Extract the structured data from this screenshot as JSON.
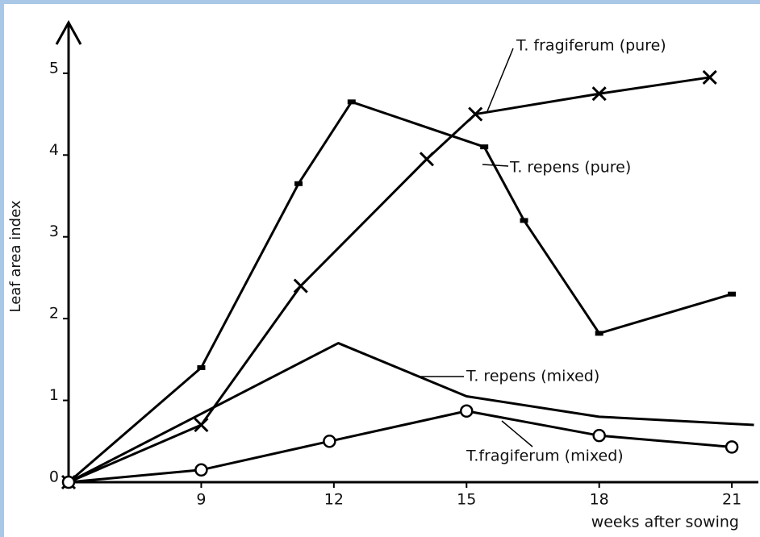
{
  "chart_data": {
    "type": "line",
    "x_label": "weeks after sowing",
    "y_label": "Leaf area index",
    "xlim": [
      6,
      21.6
    ],
    "xticks": [
      9,
      12,
      15,
      18,
      21
    ],
    "ylim": [
      0,
      5.6
    ],
    "yticks": [
      0,
      1,
      2,
      3,
      4,
      5
    ],
    "grid": false,
    "series": [
      {
        "name": "T. fragiferum (pure)",
        "color": "#000000",
        "marker": "x",
        "x": [
          6,
          9,
          11.25,
          14.1,
          15.2,
          18,
          20.5
        ],
        "values": [
          0,
          0.7,
          2.4,
          3.95,
          4.5,
          4.75,
          4.95
        ]
      },
      {
        "name": "T. repens (pure)",
        "color": "#000000",
        "marker": "dot",
        "x": [
          6,
          9,
          11.2,
          12.4,
          15.4,
          16.3,
          18,
          21
        ],
        "values": [
          0,
          1.4,
          3.65,
          4.65,
          4.1,
          3.2,
          1.82,
          2.3
        ]
      },
      {
        "name": "T. repens (mixed)",
        "color": "#000000",
        "marker": "none",
        "x": [
          6,
          12.1,
          15,
          18,
          21.5
        ],
        "values": [
          0,
          1.7,
          1.05,
          0.8,
          0.7
        ]
      },
      {
        "name": "T.fragiferum (mixed)",
        "color": "#000000",
        "marker": "circle",
        "x": [
          6,
          9,
          11.9,
          15,
          18,
          21
        ],
        "values": [
          0,
          0.15,
          0.5,
          0.87,
          0.57,
          0.43
        ]
      }
    ]
  }
}
